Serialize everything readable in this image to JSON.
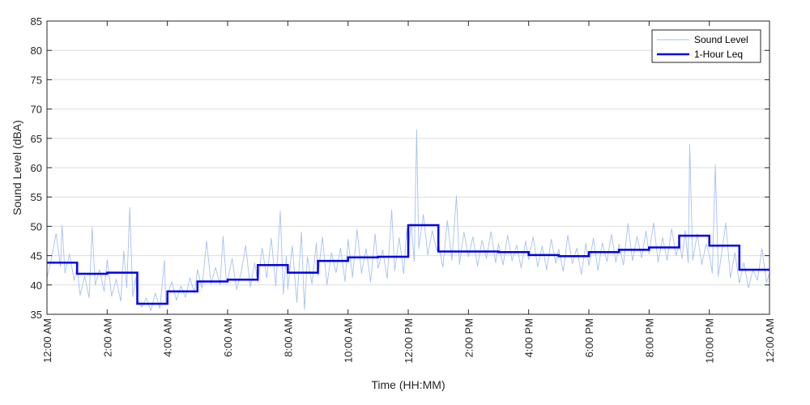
{
  "chart_data": {
    "type": "line",
    "title": "",
    "xlabel": "Time (HH:MM)",
    "ylabel": "Sound Level (dBA)",
    "ylim": [
      35,
      85
    ],
    "xlim": [
      0,
      24
    ],
    "x_unit": "hours",
    "y_ticks": [
      35,
      40,
      45,
      50,
      55,
      60,
      65,
      70,
      75,
      80,
      85
    ],
    "x_ticks": [
      {
        "x": 0,
        "label": "12:00 AM"
      },
      {
        "x": 2,
        "label": "2:00 AM"
      },
      {
        "x": 4,
        "label": "4:00 AM"
      },
      {
        "x": 6,
        "label": "6:00 AM"
      },
      {
        "x": 8,
        "label": "8:00 AM"
      },
      {
        "x": 10,
        "label": "10:00 AM"
      },
      {
        "x": 12,
        "label": "12:00 PM"
      },
      {
        "x": 14,
        "label": "2:00 PM"
      },
      {
        "x": 16,
        "label": "4:00 PM"
      },
      {
        "x": 18,
        "label": "6:00 PM"
      },
      {
        "x": 20,
        "label": "8:00 PM"
      },
      {
        "x": 22,
        "label": "10:00 PM"
      },
      {
        "x": 24,
        "label": "12:00 AM"
      }
    ],
    "grid": "horizontal",
    "legend_position": "top-right",
    "series": [
      {
        "name": "Sound Level",
        "color": "#a7c1ee",
        "style": "thin",
        "points": [
          [
            0.0,
            41.2
          ],
          [
            0.15,
            44.5
          ],
          [
            0.3,
            48.8
          ],
          [
            0.45,
            43.1
          ],
          [
            0.5,
            50.2
          ],
          [
            0.6,
            42.0
          ],
          [
            0.75,
            45.3
          ],
          [
            0.9,
            40.8
          ],
          [
            1.0,
            43.0
          ],
          [
            1.1,
            38.2
          ],
          [
            1.25,
            41.5
          ],
          [
            1.4,
            37.8
          ],
          [
            1.5,
            49.8
          ],
          [
            1.6,
            40.0
          ],
          [
            1.75,
            42.6
          ],
          [
            1.9,
            38.9
          ],
          [
            2.0,
            44.3
          ],
          [
            2.15,
            38.1
          ],
          [
            2.3,
            41.0
          ],
          [
            2.45,
            37.2
          ],
          [
            2.55,
            45.8
          ],
          [
            2.65,
            39.5
          ],
          [
            2.75,
            53.2
          ],
          [
            2.85,
            38.0
          ],
          [
            2.95,
            41.3
          ],
          [
            3.0,
            37.5
          ],
          [
            3.15,
            36.2
          ],
          [
            3.3,
            37.8
          ],
          [
            3.45,
            35.6
          ],
          [
            3.6,
            38.6
          ],
          [
            3.75,
            36.0
          ],
          [
            3.9,
            44.2
          ],
          [
            3.95,
            37.0
          ],
          [
            4.0,
            38.4
          ],
          [
            4.15,
            40.5
          ],
          [
            4.3,
            37.4
          ],
          [
            4.45,
            39.8
          ],
          [
            4.6,
            37.9
          ],
          [
            4.75,
            41.2
          ],
          [
            4.9,
            38.6
          ],
          [
            5.0,
            42.6
          ],
          [
            5.15,
            39.4
          ],
          [
            5.3,
            47.5
          ],
          [
            5.45,
            40.2
          ],
          [
            5.6,
            43.0
          ],
          [
            5.75,
            40.0
          ],
          [
            5.85,
            48.3
          ],
          [
            5.95,
            41.1
          ],
          [
            6.0,
            40.8
          ],
          [
            6.15,
            44.5
          ],
          [
            6.3,
            39.2
          ],
          [
            6.45,
            42.1
          ],
          [
            6.6,
            46.7
          ],
          [
            6.75,
            39.6
          ],
          [
            6.9,
            43.8
          ],
          [
            7.0,
            40.5
          ],
          [
            7.15,
            46.3
          ],
          [
            7.3,
            41.2
          ],
          [
            7.45,
            48.0
          ],
          [
            7.6,
            39.8
          ],
          [
            7.75,
            52.6
          ],
          [
            7.85,
            38.4
          ],
          [
            7.95,
            44.9
          ],
          [
            8.0,
            39.3
          ],
          [
            8.15,
            46.7
          ],
          [
            8.3,
            37.0
          ],
          [
            8.45,
            49.0
          ],
          [
            8.55,
            35.8
          ],
          [
            8.65,
            44.8
          ],
          [
            8.8,
            40.2
          ],
          [
            8.95,
            47.2
          ],
          [
            9.0,
            41.5
          ],
          [
            9.15,
            48.2
          ],
          [
            9.3,
            40.0
          ],
          [
            9.45,
            45.5
          ],
          [
            9.6,
            42.1
          ],
          [
            9.75,
            46.3
          ],
          [
            9.9,
            40.6
          ],
          [
            10.0,
            47.8
          ],
          [
            10.15,
            41.3
          ],
          [
            10.3,
            49.5
          ],
          [
            10.45,
            42.0
          ],
          [
            10.6,
            46.2
          ],
          [
            10.75,
            40.5
          ],
          [
            10.9,
            48.7
          ],
          [
            11.0,
            42.8
          ],
          [
            11.15,
            46.0
          ],
          [
            11.3,
            41.1
          ],
          [
            11.45,
            52.8
          ],
          [
            11.55,
            42.4
          ],
          [
            11.7,
            48.1
          ],
          [
            11.85,
            41.9
          ],
          [
            11.95,
            49.6
          ],
          [
            12.0,
            46.0
          ],
          [
            12.1,
            50.5
          ],
          [
            12.2,
            44.0
          ],
          [
            12.28,
            66.5
          ],
          [
            12.35,
            46.2
          ],
          [
            12.5,
            52.0
          ],
          [
            12.65,
            45.1
          ],
          [
            12.8,
            49.3
          ],
          [
            12.95,
            45.8
          ],
          [
            13.0,
            47.2
          ],
          [
            13.15,
            43.0
          ],
          [
            13.3,
            51.0
          ],
          [
            13.45,
            44.2
          ],
          [
            13.6,
            55.2
          ],
          [
            13.7,
            43.5
          ],
          [
            13.85,
            49.0
          ],
          [
            14.0,
            44.8
          ],
          [
            14.15,
            48.2
          ],
          [
            14.3,
            43.2
          ],
          [
            14.45,
            47.6
          ],
          [
            14.6,
            44.5
          ],
          [
            14.75,
            49.1
          ],
          [
            14.9,
            43.8
          ],
          [
            15.0,
            47.0
          ],
          [
            15.15,
            43.4
          ],
          [
            15.3,
            48.5
          ],
          [
            15.45,
            44.1
          ],
          [
            15.6,
            46.8
          ],
          [
            15.75,
            42.9
          ],
          [
            15.9,
            47.5
          ],
          [
            16.0,
            44.3
          ],
          [
            16.15,
            48.2
          ],
          [
            16.3,
            43.1
          ],
          [
            16.45,
            46.6
          ],
          [
            16.6,
            42.6
          ],
          [
            16.75,
            47.8
          ],
          [
            16.9,
            43.7
          ],
          [
            17.0,
            46.1
          ],
          [
            17.15,
            42.3
          ],
          [
            17.3,
            48.5
          ],
          [
            17.45,
            43.6
          ],
          [
            17.6,
            46.3
          ],
          [
            17.75,
            41.8
          ],
          [
            17.9,
            47.1
          ],
          [
            18.0,
            43.3
          ],
          [
            18.15,
            48.0
          ],
          [
            18.3,
            42.5
          ],
          [
            18.45,
            47.2
          ],
          [
            18.6,
            44.0
          ],
          [
            18.75,
            48.6
          ],
          [
            18.9,
            43.9
          ],
          [
            19.0,
            47.0
          ],
          [
            19.15,
            43.4
          ],
          [
            19.3,
            50.5
          ],
          [
            19.45,
            44.1
          ],
          [
            19.6,
            48.3
          ],
          [
            19.75,
            44.6
          ],
          [
            19.9,
            49.2
          ],
          [
            20.0,
            45.3
          ],
          [
            20.15,
            50.6
          ],
          [
            20.3,
            43.9
          ],
          [
            20.45,
            48.1
          ],
          [
            20.6,
            44.2
          ],
          [
            20.75,
            49.6
          ],
          [
            20.9,
            45.0
          ],
          [
            21.0,
            47.3
          ],
          [
            21.1,
            44.5
          ],
          [
            21.2,
            49.3
          ],
          [
            21.3,
            43.8
          ],
          [
            21.35,
            64.0
          ],
          [
            21.45,
            44.2
          ],
          [
            21.6,
            48.7
          ],
          [
            21.75,
            43.5
          ],
          [
            21.9,
            47.0
          ],
          [
            22.0,
            45.2
          ],
          [
            22.1,
            42.0
          ],
          [
            22.2,
            60.5
          ],
          [
            22.3,
            41.5
          ],
          [
            22.45,
            46.8
          ],
          [
            22.55,
            50.6
          ],
          [
            22.7,
            41.2
          ],
          [
            22.85,
            45.5
          ],
          [
            23.0,
            40.3
          ],
          [
            23.15,
            43.8
          ],
          [
            23.3,
            39.5
          ],
          [
            23.45,
            42.6
          ],
          [
            23.6,
            40.8
          ],
          [
            23.75,
            46.2
          ],
          [
            23.9,
            40.4
          ],
          [
            24.0,
            42.0
          ]
        ]
      },
      {
        "name": "1-Hour Leq",
        "color": "#0000ee",
        "style": "step",
        "values": [
          43.8,
          41.9,
          42.1,
          36.8,
          38.9,
          40.6,
          40.9,
          43.4,
          42.1,
          44.1,
          44.7,
          44.8,
          50.2,
          45.7,
          45.7,
          45.6,
          45.1,
          44.9,
          45.6,
          46.0,
          46.4,
          48.4,
          46.7,
          42.6
        ]
      }
    ]
  }
}
